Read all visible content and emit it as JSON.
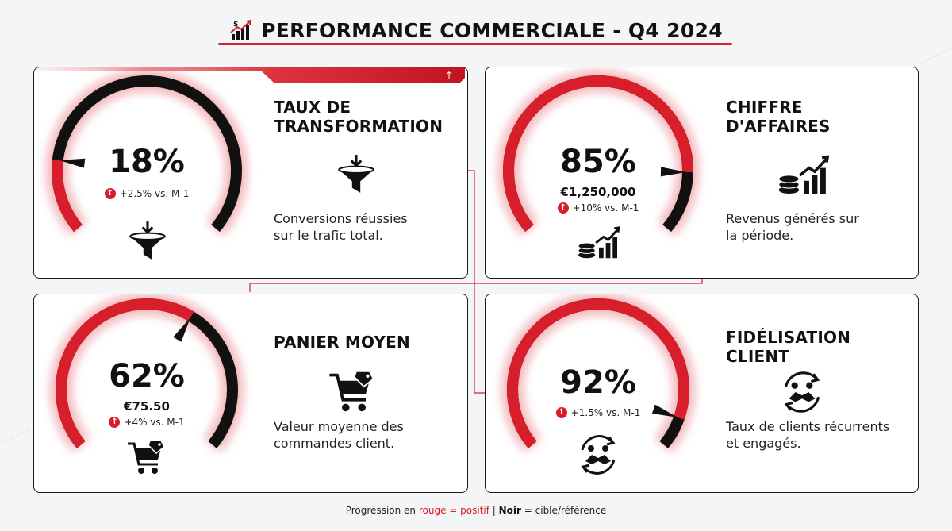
{
  "header": {
    "title": "PERFORMANCE COMMERCIALE - Q4 2024",
    "icon": "money-growth-chart-icon"
  },
  "colors": {
    "accent": "#d81e2a",
    "dark": "#111111",
    "background": "#f4f5f7"
  },
  "kpis": [
    {
      "id": "taux",
      "title": "TAUX DE\nTRANSFORMATION",
      "value": "18%",
      "progress": 0.18,
      "sub_value": "",
      "delta": "+2.5% vs. M-1",
      "description": "Conversions réussies\nsur le trafic total.",
      "icon": "funnel-icon"
    },
    {
      "id": "ca",
      "title": "CHIFFRE\nD'AFFAIRES",
      "value": "85%",
      "progress": 0.85,
      "sub_value": "€1,250,000",
      "delta": "+10% vs. M-1",
      "description": "Revenus générés sur\nla période.",
      "icon": "coins-growth-icon"
    },
    {
      "id": "panier",
      "title": "PANIER MOYEN",
      "value": "62%",
      "progress": 0.62,
      "sub_value": "€75.50",
      "delta": "+4% vs. M-1",
      "description": "Valeur moyenne des\ncommandes client.",
      "icon": "shopping-cart-tag-icon"
    },
    {
      "id": "fidel",
      "title": "FIDÉLISATION\nCLIENT",
      "value": "92%",
      "progress": 0.92,
      "sub_value": "",
      "delta": "+1.5% vs. M-1",
      "description": "Taux de clients récurrents\net engagés.",
      "icon": "handshake-cycle-icon"
    }
  ],
  "footer": {
    "prefix": "Progression en ",
    "red_text": "rouge = positif",
    "separator": " | ",
    "bold_text": "Noir",
    "suffix": " = cible/référence"
  }
}
